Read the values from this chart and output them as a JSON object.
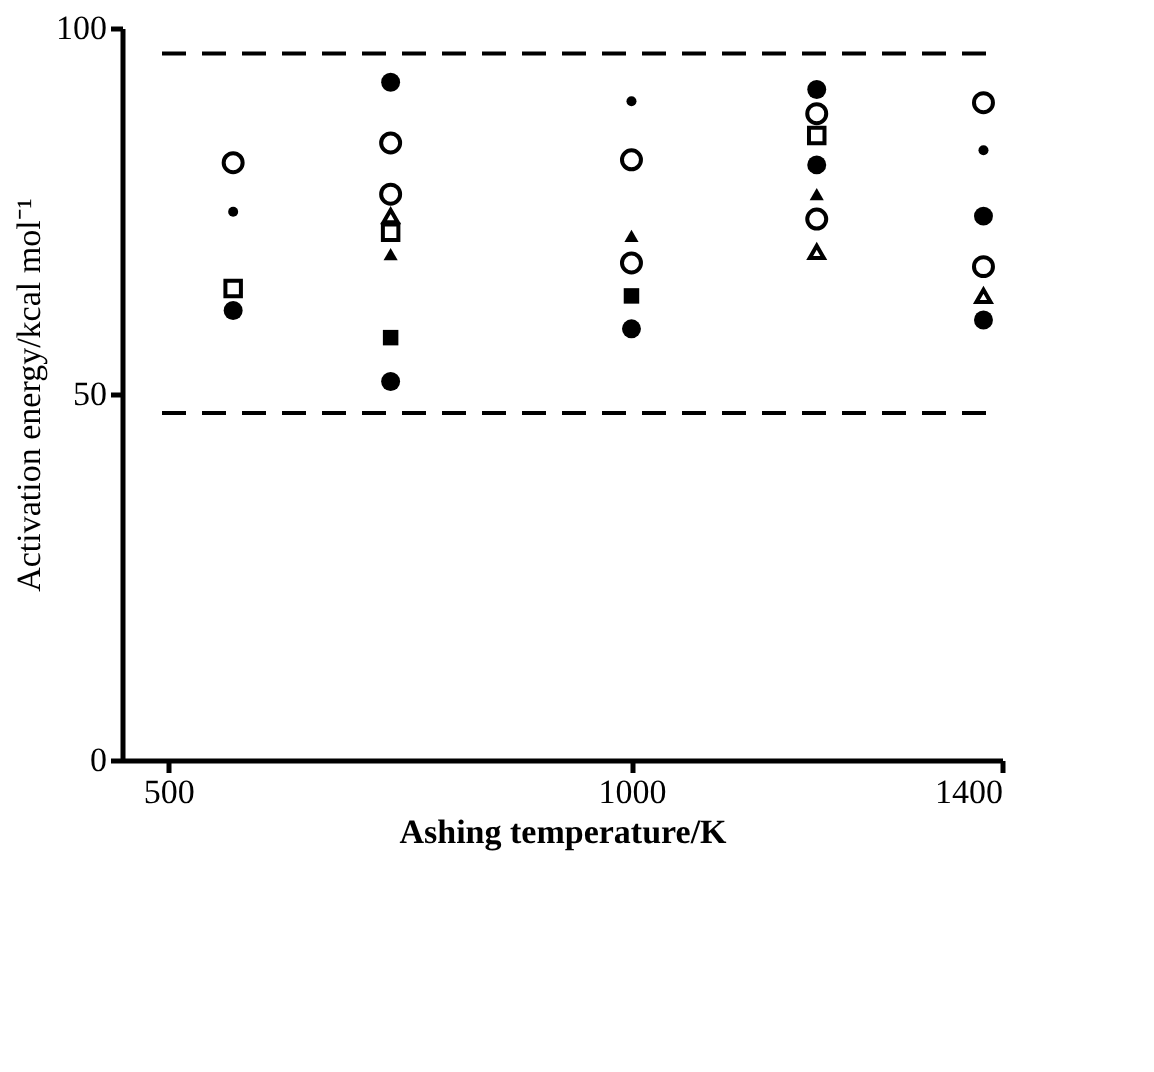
{
  "chart_data": {
    "type": "scatter",
    "xlabel": "Ashing temperature/K",
    "ylabel": "Activation energy/kcal mol⁻¹",
    "xlim": [
      450,
      1400
    ],
    "xticks": [
      500,
      1000,
      1400
    ],
    "ylim": [
      0,
      100
    ],
    "yticks": [
      0,
      50,
      100
    ],
    "grid": false,
    "ref_lines": [
      {
        "axis": "y",
        "value": 96.5,
        "line_style": "dashed",
        "color": "#000000"
      },
      {
        "axis": "y",
        "value": 47.4,
        "line_style": "dashed",
        "color": "#000000"
      }
    ],
    "series": [
      {
        "color": "#000000",
        "marker": "circle",
        "x": [
          570,
          740,
          740,
          1000,
          1000,
          1200,
          1200,
          1380,
          1380
        ],
        "values": [
          81.6,
          84.3,
          77.3,
          82.0,
          67.9,
          88.3,
          73.9,
          89.8,
          67.4
        ]
      },
      {
        "color": "#000000",
        "marker": "circle",
        "x": [
          570,
          740,
          740,
          1000,
          1200,
          1200,
          1380,
          1380
        ],
        "values": [
          61.4,
          92.6,
          51.7,
          58.9,
          91.6,
          81.3,
          74.3,
          60.1
        ]
      },
      {
        "color": "#000000",
        "marker": "circle",
        "x": [
          570,
          1000,
          1380
        ],
        "values": [
          74.9,
          90.0,
          83.3
        ]
      },
      {
        "color": "#000000",
        "marker": "square",
        "x": [
          570,
          740,
          1200
        ],
        "values": [
          64.4,
          72.1,
          85.3
        ]
      },
      {
        "color": "#000000",
        "marker": "square",
        "x": [
          740,
          1000
        ],
        "values": [
          57.7,
          63.4
        ]
      },
      {
        "color": "#000000",
        "marker": "triangle",
        "x": [
          740,
          1200,
          1380
        ],
        "values": [
          74.3,
          69.4,
          63.4
        ]
      },
      {
        "color": "#000000",
        "marker": "triangle",
        "x": [
          740,
          1000,
          1200
        ],
        "values": [
          69.1,
          71.6,
          77.3
        ]
      }
    ]
  }
}
